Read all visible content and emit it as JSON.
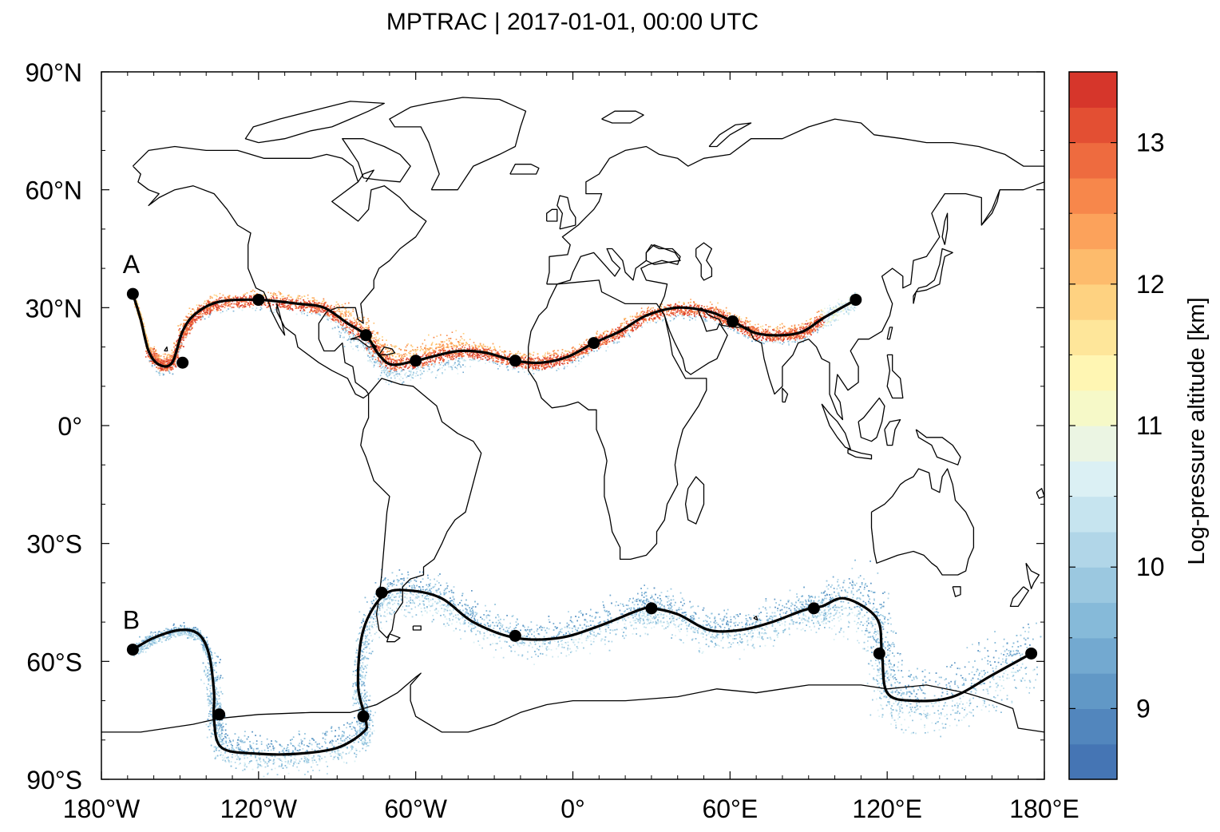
{
  "chart_data": {
    "type": "scatter",
    "title": "MPTRAC | 2017-01-01, 00:00 UTC",
    "xlim": [
      -180,
      180
    ],
    "ylim": [
      -90,
      90
    ],
    "x_ticks": [
      -180,
      -120,
      -60,
      0,
      60,
      120,
      180
    ],
    "x_tick_labels": [
      "180°W",
      "120°W",
      "60°W",
      "0°",
      "60°E",
      "120°E",
      "180°E"
    ],
    "y_ticks": [
      90,
      60,
      30,
      0,
      -30,
      -60,
      -90
    ],
    "y_tick_labels": [
      "90°N",
      "60°N",
      "30°N",
      "0°",
      "30°S",
      "60°S",
      "90°S"
    ],
    "colorbar": {
      "label": "Log-pressure altitude [km]",
      "range": [
        8.5,
        13.5
      ],
      "ticks": [
        9,
        10,
        11,
        12,
        13
      ],
      "tick_labels": [
        "9",
        "10",
        "11",
        "12",
        "13"
      ],
      "colors": [
        "#4575b4",
        "#5286bd",
        "#6198c6",
        "#73a9d0",
        "#86bad9",
        "#9bc8e0",
        "#b1d6e8",
        "#c6e4ef",
        "#dbf0f4",
        "#ebf5e3",
        "#f6f9c8",
        "#fff6b3",
        "#fee69a",
        "#fed281",
        "#fdbb6c",
        "#fca25b",
        "#f7874b",
        "#ee6b3f",
        "#e34f33",
        "#d6362b"
      ]
    },
    "series": [
      {
        "name": "A",
        "points": [
          [
            -168,
            33.5
          ],
          [
            -165,
            27
          ],
          [
            -162,
            19
          ],
          [
            -158,
            15.5
          ],
          [
            -153,
            16
          ],
          [
            -149,
            24
          ],
          [
            -144,
            28.5
          ],
          [
            -135,
            31.5
          ],
          [
            -120,
            32
          ],
          [
            -105,
            31
          ],
          [
            -95,
            30
          ],
          [
            -86,
            26
          ],
          [
            -79,
            23
          ],
          [
            -74,
            18
          ],
          [
            -69,
            15.5
          ],
          [
            -60,
            16.5
          ],
          [
            -51,
            18
          ],
          [
            -43,
            19
          ],
          [
            -33,
            18.5
          ],
          [
            -22,
            16.5
          ],
          [
            -12,
            16
          ],
          [
            -2,
            17.5
          ],
          [
            8,
            21
          ],
          [
            18,
            24
          ],
          [
            28,
            28
          ],
          [
            40,
            30
          ],
          [
            52,
            29
          ],
          [
            61,
            26.5
          ],
          [
            70,
            23.5
          ],
          [
            80,
            23
          ],
          [
            88,
            24
          ],
          [
            96,
            27.5
          ],
          [
            108,
            32
          ]
        ],
        "markers": [
          [
            -168,
            33.5
          ],
          [
            -149,
            16
          ],
          [
            -120,
            32
          ],
          [
            -79,
            23
          ],
          [
            -60,
            16.5
          ],
          [
            -22,
            16.5
          ],
          [
            8,
            21
          ],
          [
            61,
            26.5
          ],
          [
            108,
            32
          ]
        ]
      },
      {
        "name": "B",
        "points": [
          [
            -168,
            -57
          ],
          [
            -160,
            -54
          ],
          [
            -150,
            -52
          ],
          [
            -143,
            -53
          ],
          [
            -139,
            -58
          ],
          [
            -137,
            -68
          ],
          [
            -137,
            -75
          ],
          [
            -134,
            -82
          ],
          [
            -120,
            -83.5
          ],
          [
            -105,
            -83.5
          ],
          [
            -90,
            -82
          ],
          [
            -80,
            -78
          ],
          [
            -79,
            -75
          ],
          [
            -82,
            -66
          ],
          [
            -80,
            -52
          ],
          [
            -72,
            -43
          ],
          [
            -62,
            -42
          ],
          [
            -50,
            -44
          ],
          [
            -38,
            -50
          ],
          [
            -22,
            -54
          ],
          [
            -5,
            -54
          ],
          [
            10,
            -51
          ],
          [
            25,
            -47
          ],
          [
            30,
            -46.5
          ],
          [
            40,
            -48
          ],
          [
            52,
            -52
          ],
          [
            64,
            -52
          ],
          [
            76,
            -50
          ],
          [
            88,
            -47
          ],
          [
            95,
            -46
          ],
          [
            104,
            -44
          ],
          [
            116,
            -49
          ],
          [
            118,
            -58
          ],
          [
            120,
            -68
          ],
          [
            130,
            -70
          ],
          [
            145,
            -69
          ],
          [
            160,
            -63.5
          ],
          [
            175,
            -58
          ]
        ],
        "markers": [
          [
            -168,
            -57
          ],
          [
            -135,
            -73.5
          ],
          [
            -80,
            -74
          ],
          [
            -73,
            -42.5
          ],
          [
            -22,
            -53.5
          ],
          [
            30,
            -46.5
          ],
          [
            92,
            -46.5
          ],
          [
            117,
            -58
          ],
          [
            175,
            -58
          ]
        ]
      }
    ]
  }
}
